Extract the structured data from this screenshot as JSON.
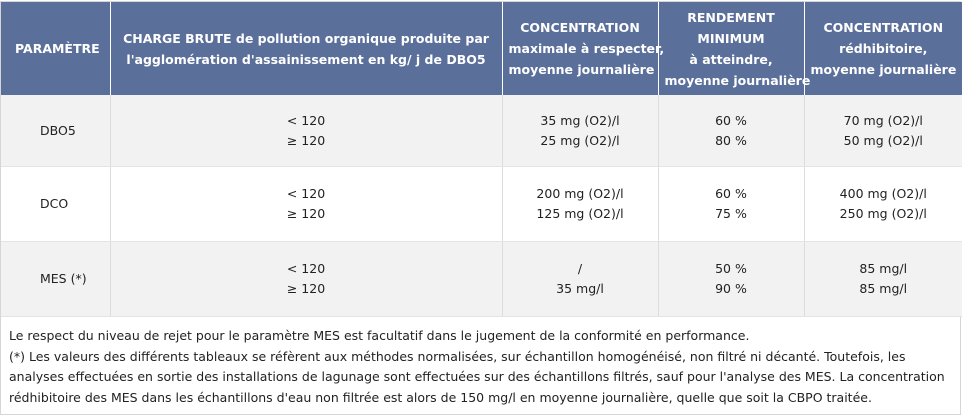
{
  "header": {
    "param": "PARAMÈTRE",
    "charge_l1": "CHARGE BRUTE de pollution organique produite par",
    "charge_l2": "l'agglomération d'assainissement en kg/ j de DBO5",
    "conc_l1": "CONCENTRATION",
    "conc_l2": "maximale à respecter,",
    "conc_l3": "moyenne journalière",
    "rend_l1": "RENDEMENT",
    "rend_l2": "MINIMUM",
    "rend_l3": "à atteindre,",
    "rend_l4": "moyenne journalière",
    "redh_l1": "CONCENTRATION",
    "redh_l2": "rédhibitoire,",
    "redh_l3": "moyenne journalière"
  },
  "rows": [
    {
      "param": "DBO5",
      "charge": [
        "< 120",
        "≥ 120"
      ],
      "conc": [
        "35 mg (O2)/l",
        "25 mg (O2)/l"
      ],
      "rend": [
        "60 %",
        "80 %"
      ],
      "redh": [
        "70 mg (O2)/l",
        "50 mg (O2)/l"
      ]
    },
    {
      "param": "DCO",
      "charge": [
        "< 120",
        "≥ 120"
      ],
      "conc": [
        "200 mg (O2)/l",
        "125 mg (O2)/l"
      ],
      "rend": [
        "60 %",
        "75 %"
      ],
      "redh": [
        "400 mg (O2)/l",
        "250 mg (O2)/l"
      ]
    },
    {
      "param": "MES (*)",
      "charge": [
        "< 120",
        "≥ 120"
      ],
      "conc": [
        "/",
        "35 mg/l"
      ],
      "rend": [
        "50 %",
        "90 %"
      ],
      "redh": [
        "85 mg/l",
        "85 mg/l"
      ]
    }
  ],
  "footnote": {
    "line1": "Le respect du niveau de rejet pour le paramètre MES est facultatif dans le jugement de la conformité en performance.",
    "line2": "(*) Les valeurs des différents tableaux se réfèrent aux méthodes normalisées, sur échantillon homogénéisé, non filtré ni décanté. Toutefois, les analyses effectuées en sortie des installations de lagunage sont effectuées sur des échantillons filtrés, sauf pour l'analyse des MES. La concentration rédhibitoire des MES dans les échantillons d'eau non filtrée est alors de 150 mg/l en moyenne journalière, quelle que soit la CBPO traitée."
  }
}
